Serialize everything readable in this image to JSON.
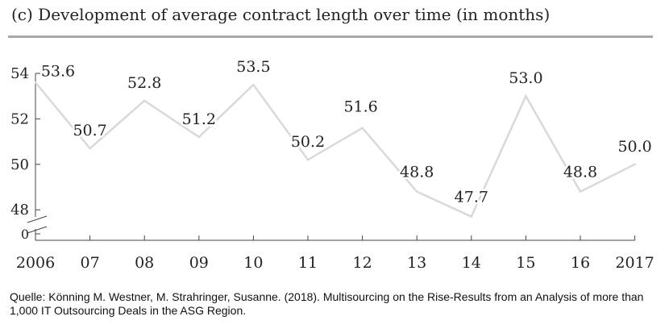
{
  "title": "(c) Development of average contract length over time (in months)",
  "source": "Quelle: Könning M. Westner, M. Strahringer, Susanne. (2018). Multisourcing on the Rise-Results from an Analysis of more than 1,000 IT Outsourcing Deals in the ASG Region.",
  "colors": {
    "line": "#d9d9d9",
    "axis": "#444444",
    "text": "#222222"
  },
  "chart_data": {
    "type": "line",
    "categories": [
      "2006",
      "07",
      "08",
      "09",
      "10",
      "11",
      "12",
      "13",
      "14",
      "15",
      "16",
      "2017"
    ],
    "values": [
      53.6,
      50.7,
      52.8,
      51.2,
      53.5,
      50.2,
      51.6,
      48.8,
      47.7,
      53.0,
      48.8,
      50.0
    ],
    "data_labels": [
      "53.6",
      "50.7",
      "52.8",
      "51.2",
      "53.5",
      "50.2",
      "51.6",
      "48.8",
      "47.7",
      "53.0",
      "48.8",
      "50.0"
    ],
    "y_ticks": [
      54,
      52,
      50,
      48
    ],
    "y_zero_label": "0",
    "ylim": [
      47.5,
      54
    ],
    "axis_break": true,
    "grid": false,
    "legend": false
  }
}
